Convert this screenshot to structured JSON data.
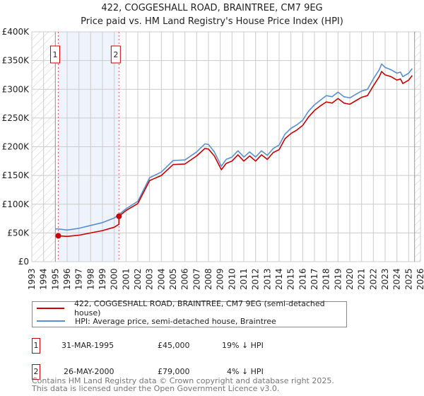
{
  "title": "422, COGGESHALL ROAD, BRAINTREE, CM7 9EG",
  "subtitle": "Price paid vs. HM Land Registry's House Price Index (HPI)",
  "colors": {
    "price": "#cc0000",
    "hpi": "#5b8fd1",
    "shade": "#eef3fc",
    "grid": "#cccccc"
  },
  "legend": [
    {
      "label": "422, COGGESHALL ROAD, BRAINTREE, CM7 9EG (semi-detached house)"
    },
    {
      "label": "HPI: Average price, semi-detached house, Braintree"
    }
  ],
  "sales": [
    {
      "num": "1",
      "date": "31-MAR-1995",
      "price": "£45,000",
      "diff": "19% ↓ HPI",
      "x": 1995.25,
      "y": 45
    },
    {
      "num": "2",
      "date": "26-MAY-2000",
      "price": "£79,000",
      "diff": "4% ↓ HPI",
      "x": 2000.4,
      "y": 79
    }
  ],
  "footer": [
    "Contains HM Land Registry data © Crown copyright and database right 2025.",
    "This data is licensed under the Open Government Licence v3.0."
  ],
  "chart_data": {
    "type": "line",
    "title": "422, COGGESHALL ROAD, BRAINTREE, CM7 9EG",
    "xlim": [
      1993,
      2026
    ],
    "ylim": [
      0,
      400
    ],
    "y_unit": "£K",
    "yticks": [
      "£0",
      "£50K",
      "£100K",
      "£150K",
      "£200K",
      "£250K",
      "£300K",
      "£350K",
      "£400K"
    ],
    "xticks": [
      "1993",
      "1994",
      "1995",
      "1996",
      "1997",
      "1998",
      "1999",
      "2000",
      "2001",
      "2002",
      "2003",
      "2004",
      "2005",
      "2006",
      "2007",
      "2008",
      "2009",
      "2010",
      "2011",
      "2012",
      "2013",
      "2014",
      "2015",
      "2016",
      "2017",
      "2018",
      "2019",
      "2020",
      "2021",
      "2022",
      "2023",
      "2024",
      "2025",
      "2026"
    ],
    "grid": true,
    "series": [
      {
        "name": "HPI: Average price, semi-detached house, Braintree",
        "points": [
          [
            1995.0,
            57
          ],
          [
            1995.2,
            57
          ],
          [
            1996,
            55
          ],
          [
            1997,
            58
          ],
          [
            1998,
            63
          ],
          [
            1999,
            68
          ],
          [
            2000,
            76
          ],
          [
            2000.4,
            82
          ],
          [
            2001,
            92
          ],
          [
            2002,
            105
          ],
          [
            2003,
            146
          ],
          [
            2004,
            156
          ],
          [
            2005,
            176
          ],
          [
            2006,
            177
          ],
          [
            2007,
            191
          ],
          [
            2007.7,
            205
          ],
          [
            2008,
            204
          ],
          [
            2008.5,
            191
          ],
          [
            2009.1,
            166
          ],
          [
            2009.5,
            178
          ],
          [
            2010,
            182
          ],
          [
            2010.5,
            193
          ],
          [
            2011,
            182
          ],
          [
            2011.5,
            191
          ],
          [
            2012,
            182
          ],
          [
            2012.5,
            193
          ],
          [
            2013,
            185
          ],
          [
            2013.5,
            197
          ],
          [
            2014,
            203
          ],
          [
            2014.5,
            222
          ],
          [
            2015,
            232
          ],
          [
            2015.5,
            238
          ],
          [
            2016,
            246
          ],
          [
            2016.5,
            262
          ],
          [
            2017,
            273
          ],
          [
            2017.5,
            281
          ],
          [
            2018,
            289
          ],
          [
            2018.5,
            287
          ],
          [
            2019,
            295
          ],
          [
            2019.5,
            287
          ],
          [
            2020,
            285
          ],
          [
            2020.5,
            291
          ],
          [
            2021,
            297
          ],
          [
            2021.5,
            300
          ],
          [
            2022,
            318
          ],
          [
            2022.5,
            334
          ],
          [
            2022.7,
            344
          ],
          [
            2023,
            338
          ],
          [
            2023.5,
            334
          ],
          [
            2024,
            328
          ],
          [
            2024.3,
            330
          ],
          [
            2024.5,
            322
          ],
          [
            2025,
            328
          ],
          [
            2025.3,
            336
          ]
        ]
      },
      {
        "name": "422, COGGESHALL ROAD, BRAINTREE, CM7 9EG (semi-detached house)",
        "points": [
          [
            1995.2,
            45
          ],
          [
            1996,
            44
          ],
          [
            1997,
            46
          ],
          [
            1998,
            50
          ],
          [
            1999,
            54
          ],
          [
            2000,
            60
          ],
          [
            2000.4,
            65
          ],
          [
            2000.4,
            79
          ],
          [
            2001,
            89
          ],
          [
            2002,
            101
          ],
          [
            2003,
            141
          ],
          [
            2004,
            150
          ],
          [
            2005,
            169
          ],
          [
            2006,
            170
          ],
          [
            2007,
            184
          ],
          [
            2007.7,
            197
          ],
          [
            2008,
            196
          ],
          [
            2008.5,
            184
          ],
          [
            2009.1,
            160
          ],
          [
            2009.5,
            171
          ],
          [
            2010,
            175
          ],
          [
            2010.5,
            186
          ],
          [
            2011,
            175
          ],
          [
            2011.5,
            184
          ],
          [
            2012,
            175
          ],
          [
            2012.5,
            186
          ],
          [
            2013,
            178
          ],
          [
            2013.5,
            190
          ],
          [
            2014,
            195
          ],
          [
            2014.5,
            214
          ],
          [
            2015,
            223
          ],
          [
            2015.5,
            229
          ],
          [
            2016,
            237
          ],
          [
            2016.5,
            252
          ],
          [
            2017,
            263
          ],
          [
            2017.5,
            271
          ],
          [
            2018,
            278
          ],
          [
            2018.5,
            276
          ],
          [
            2019,
            284
          ],
          [
            2019.5,
            276
          ],
          [
            2020,
            274
          ],
          [
            2020.5,
            280
          ],
          [
            2021,
            286
          ],
          [
            2021.5,
            289
          ],
          [
            2022,
            306
          ],
          [
            2022.5,
            322
          ],
          [
            2022.7,
            331
          ],
          [
            2023,
            325
          ],
          [
            2023.5,
            322
          ],
          [
            2024,
            316
          ],
          [
            2024.3,
            318
          ],
          [
            2024.5,
            310
          ],
          [
            2025,
            316
          ],
          [
            2025.3,
            324
          ]
        ]
      }
    ]
  }
}
